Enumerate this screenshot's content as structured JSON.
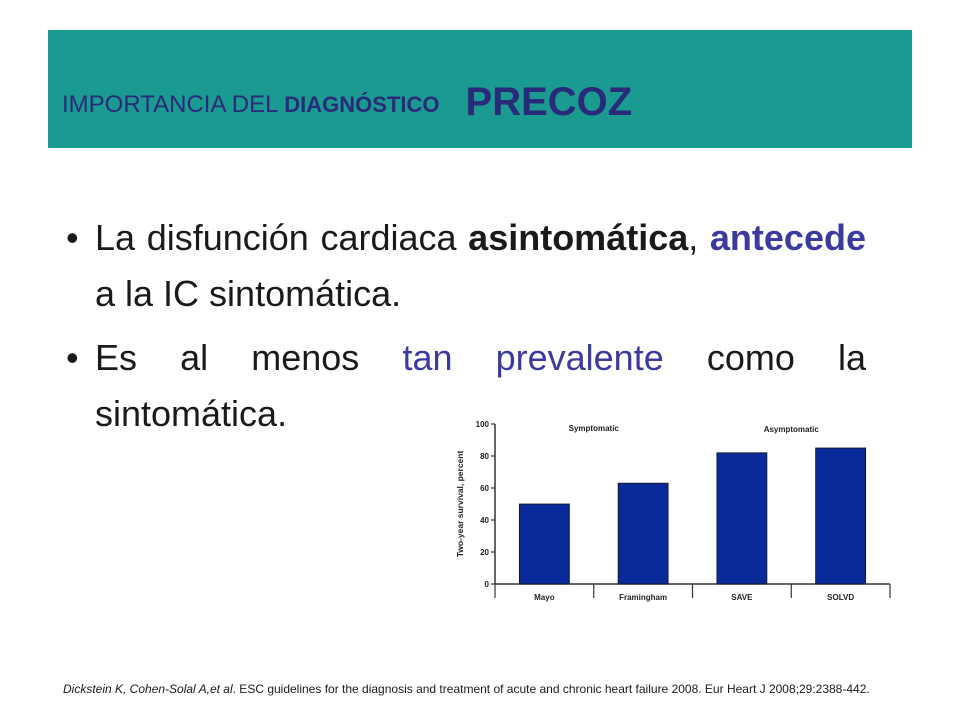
{
  "header": {
    "title_part1": "IMPORTANCIA DEL ",
    "title_part2": "DIAGNÓSTICO",
    "title_part3": "PRECOZ"
  },
  "bullets": [
    {
      "seg1": "La disfunción cardiaca ",
      "seg2": "asintomática",
      "seg3": ", ",
      "seg4": "antecede",
      "seg5": " a la IC sintomática."
    },
    {
      "seg1": "Es al menos ",
      "seg2": "tan prevalente",
      "seg3": " como la sintomática."
    }
  ],
  "citation": {
    "authors": "Dickstein K, Cohen-Solal A,et al",
    "text": ". ESC guidelines for the diagnosis and treatment of acute and chronic heart failure 2008. Eur Heart J 2008;29:2388-442."
  },
  "colors": {
    "header_bg": "#1a9a91",
    "title_text": "#2a2a7a",
    "accent_blue": "#3a3aa0",
    "bar_fill": "#0a2a9a"
  },
  "chart_data": {
    "type": "bar",
    "categories": [
      "Mayo",
      "Framingham",
      "SAVE",
      "SOLVD"
    ],
    "values": [
      50,
      63,
      82,
      85
    ],
    "ylabel": "Two-year survival, percent",
    "ylim": [
      0,
      100
    ],
    "yticks": [
      0,
      20,
      40,
      60,
      80,
      100
    ],
    "group_labels": [
      "Symptomatic",
      "Asymptomatic"
    ],
    "grid": false
  }
}
